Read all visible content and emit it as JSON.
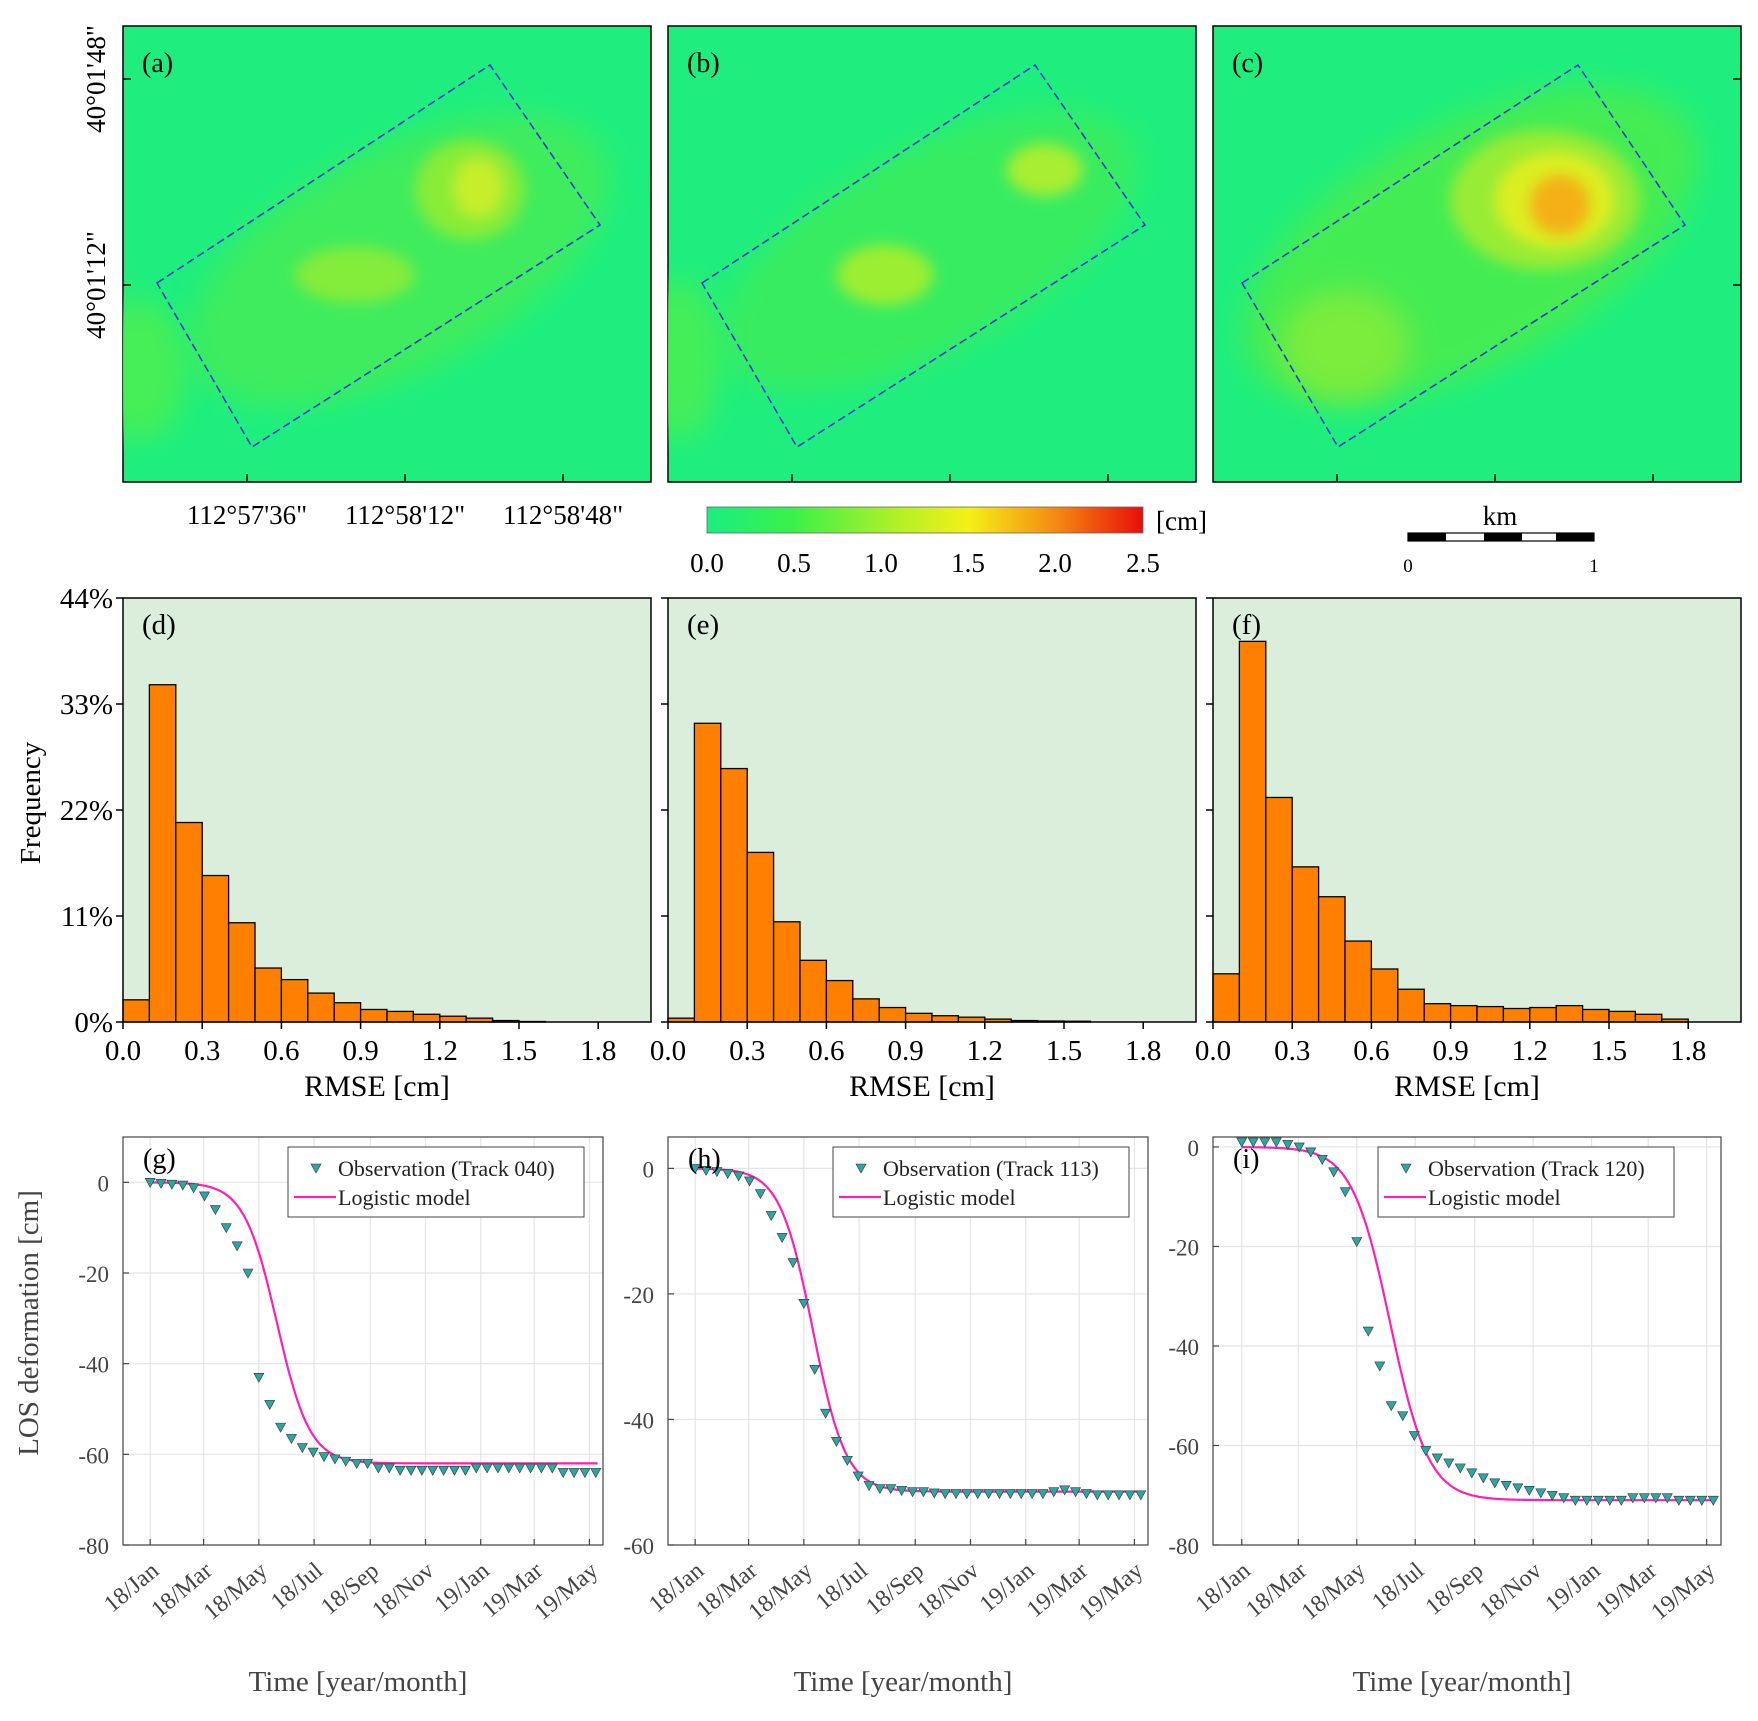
{
  "map_panels": {
    "labels": [
      "(a)",
      "(b)",
      "(c)"
    ],
    "lat_ticks": [
      "40°01'48\"",
      "40°01'12\""
    ],
    "lon_ticks": [
      "112°57'36\"",
      "112°58'12\"",
      "112°58'48\""
    ],
    "colorbar": {
      "ticks": [
        "0.0",
        "0.5",
        "1.0",
        "1.5",
        "2.0",
        "2.5"
      ],
      "unit": "[cm]",
      "colors": [
        "#19ee82",
        "#3cf04a",
        "#b8f026",
        "#f4f018",
        "#f48a12",
        "#e80e0a"
      ]
    },
    "scalebar": {
      "unit": "km",
      "ticks": [
        "0",
        "1"
      ]
    },
    "colors": {
      "background": "#1fee7e",
      "box": "#2030d8"
    },
    "max_values_cm": [
      1.4,
      1.3,
      2.0
    ]
  },
  "hist_panels": {
    "colors": {
      "bar": "#ff8000",
      "background": "#dbeedb"
    },
    "xlabel": "RMSE [cm]",
    "ylabel": "Frequency",
    "yticks": [
      "0%",
      "11%",
      "22%",
      "33%",
      "44%"
    ],
    "xticks": [
      "0.0",
      "0.3",
      "0.6",
      "0.9",
      "1.2",
      "1.5",
      "1.8"
    ]
  },
  "ts_panels": {
    "ylabel": "LOS deformation [cm]",
    "xlabel": "Time [year/month]",
    "xticks": [
      "18/Jan",
      "18/Mar",
      "18/May",
      "18/Jul",
      "18/Sep",
      "18/Nov",
      "19/Jan",
      "19/Mar",
      "19/May"
    ],
    "model_label": "Logistic model",
    "colors": {
      "model": "#ff1fb4",
      "marker": "#2aa7a3"
    }
  },
  "chart_data": [
    {
      "type": "heatmap",
      "label": "(a)",
      "title": "",
      "colorbar_label": "[cm]",
      "zlim": [
        0,
        2.5
      ],
      "peak": 1.4
    },
    {
      "type": "heatmap",
      "label": "(b)",
      "title": "",
      "colorbar_label": "[cm]",
      "zlim": [
        0,
        2.5
      ],
      "peak": 1.3
    },
    {
      "type": "heatmap",
      "label": "(c)",
      "title": "",
      "colorbar_label": "[cm]",
      "zlim": [
        0,
        2.5
      ],
      "peak": 2.0
    },
    {
      "type": "bar",
      "label": "(d)",
      "xlabel": "RMSE [cm]",
      "ylabel": "Frequency",
      "bin_width": 0.1,
      "xlim": [
        0,
        2.0
      ],
      "ylim": [
        0,
        44
      ],
      "values": [
        2.3,
        35,
        20.7,
        15.2,
        10.3,
        5.6,
        4.4,
        3.0,
        2.0,
        1.3,
        1.1,
        0.8,
        0.6,
        0.4,
        0.15,
        0.05
      ]
    },
    {
      "type": "bar",
      "label": "(e)",
      "xlabel": "RMSE [cm]",
      "ylabel": "Frequency",
      "bin_width": 0.1,
      "xlim": [
        0,
        2.0
      ],
      "ylim": [
        0,
        44
      ],
      "values": [
        0.4,
        31,
        26.3,
        17.6,
        10.4,
        6.4,
        4.3,
        2.4,
        1.5,
        0.9,
        0.65,
        0.5,
        0.3,
        0.15,
        0.1,
        0.08
      ]
    },
    {
      "type": "bar",
      "label": "(f)",
      "xlabel": "RMSE [cm]",
      "ylabel": "Frequency",
      "bin_width": 0.1,
      "xlim": [
        0,
        2.0
      ],
      "ylim": [
        0,
        44
      ],
      "values": [
        5.0,
        39.5,
        23.3,
        16.1,
        13.0,
        8.4,
        5.5,
        3.4,
        1.9,
        1.7,
        1.6,
        1.4,
        1.5,
        1.7,
        1.3,
        1.1,
        0.8,
        0.3
      ]
    },
    {
      "type": "line",
      "label": "(g)",
      "legend_obs": "Observation (Track 040)",
      "ylim": [
        -80,
        10
      ],
      "yticks": [
        0,
        -20,
        -40,
        -60,
        -80
      ],
      "model": {
        "L": 62,
        "k": 0.055,
        "t0": 140
      },
      "obs_days": [
        0,
        12,
        24,
        36,
        48,
        60,
        72,
        84,
        96,
        108,
        120,
        132,
        144,
        156,
        168,
        180,
        192,
        204,
        216,
        228,
        240,
        252,
        264,
        276,
        288,
        300,
        312,
        324,
        336,
        348,
        360,
        372,
        384,
        396,
        408,
        420,
        432,
        444,
        456,
        468,
        480,
        492
      ],
      "obs_values": [
        0,
        -0.2,
        -0.4,
        -0.6,
        -1.2,
        -3,
        -6,
        -10,
        -14,
        -20,
        -43,
        -49,
        -54,
        -56.5,
        -58.5,
        -59.5,
        -60.5,
        -61,
        -61.5,
        -62,
        -62,
        -63,
        -63,
        -63.5,
        -63.5,
        -63.5,
        -63.5,
        -63.5,
        -63.5,
        -63.5,
        -63,
        -63,
        -63,
        -63,
        -63,
        -63,
        -63,
        -63,
        -64,
        -64,
        -64,
        -64
      ]
    },
    {
      "type": "line",
      "label": "(h)",
      "legend_obs": "Observation (Track 113)",
      "ylim": [
        -60,
        5
      ],
      "yticks": [
        0,
        -20,
        -40,
        -60
      ],
      "model": {
        "L": 51.5,
        "k": 0.055,
        "t0": 130
      },
      "obs_days": [
        0,
        12,
        24,
        36,
        48,
        60,
        72,
        84,
        96,
        108,
        120,
        132,
        144,
        156,
        168,
        180,
        192,
        204,
        216,
        228,
        240,
        252,
        264,
        276,
        288,
        300,
        312,
        324,
        336,
        348,
        360,
        372,
        384,
        396,
        408,
        420,
        432,
        444,
        456,
        468,
        480,
        492
      ],
      "obs_values": [
        0,
        -0.3,
        -0.5,
        -0.8,
        -1.2,
        -2,
        -4,
        -7.5,
        -11,
        -15,
        -21.5,
        -32,
        -39,
        -43.5,
        -46.5,
        -49,
        -50.5,
        -51,
        -51,
        -51.3,
        -51.5,
        -51.5,
        -51.7,
        -51.8,
        -51.8,
        -51.8,
        -51.8,
        -51.8,
        -51.8,
        -51.8,
        -51.8,
        -51.8,
        -51.8,
        -51.5,
        -51.2,
        -51.5,
        -51.8,
        -52,
        -52,
        -52,
        -52,
        -52
      ]
    },
    {
      "type": "line",
      "label": "(i)",
      "legend_obs": "Observation (Track 120)",
      "ylim": [
        -80,
        2
      ],
      "yticks": [
        0,
        -20,
        -40,
        -60,
        -80
      ],
      "model": {
        "L": 71,
        "k": 0.05,
        "t0": 155
      },
      "obs_days": [
        0,
        12,
        24,
        36,
        48,
        60,
        72,
        84,
        96,
        108,
        120,
        132,
        144,
        156,
        168,
        180,
        192,
        204,
        216,
        228,
        240,
        252,
        264,
        276,
        288,
        300,
        312,
        324,
        336,
        348,
        360,
        372,
        384,
        396,
        408,
        420,
        432,
        444,
        456,
        468,
        480,
        492
      ],
      "obs_values": [
        1,
        1,
        1,
        1,
        0.5,
        0,
        -1,
        -2.5,
        -5,
        -9,
        -19,
        -37,
        -44,
        -52,
        -54,
        -58,
        -61,
        -62.5,
        -63.5,
        -64.5,
        -65.5,
        -66.5,
        -67.5,
        -68,
        -68.5,
        -69,
        -69.5,
        -70,
        -70.5,
        -71,
        -71,
        -71,
        -71,
        -71,
        -70.5,
        -70.5,
        -70.5,
        -70.5,
        -71,
        -71,
        -71,
        -71
      ]
    }
  ]
}
